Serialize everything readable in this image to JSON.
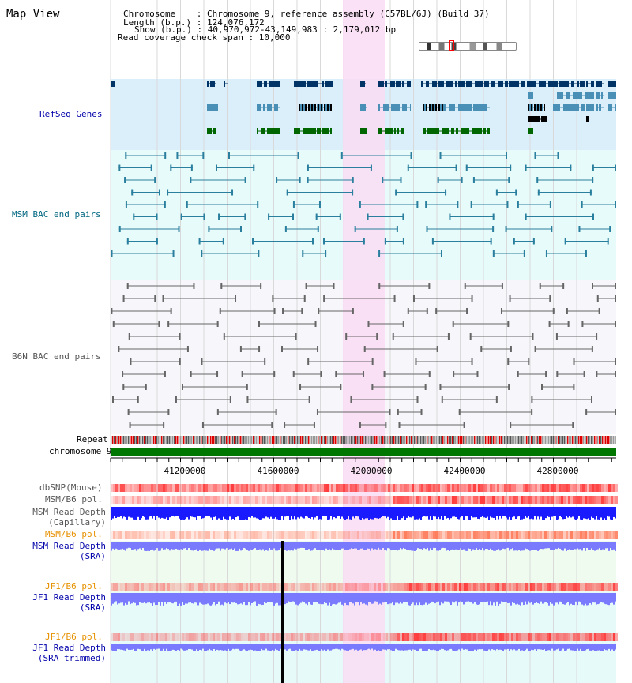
{
  "title": "Map View",
  "header": {
    "chromosome": "Chromosome    : Chromosome 9, reference assembly (C57BL/6J) (Build 37)",
    "length": "Length (b.p.) : 124,076,172",
    "show": "Show (b.p.) : 40,970,972-43,149,983 : 2,179,012 bp",
    "coverage": "Read coverage check span : 10,000"
  },
  "tracks": {
    "refseq": "RefSeq Genes",
    "msm_bac": "MSM BAC end pairs",
    "b6n_bac": "B6N BAC end pairs",
    "repeat": "Repeat",
    "chromosome": "chromosome 9",
    "dbsnp": "dbSNP(Mouse)",
    "msm_b6_pol": "MSM/B6 pol.",
    "msm_depth_cap_1": "MSM Read Depth",
    "msm_depth_cap_2": "(Capillary)",
    "msm_b6_pol2": "MSM/B6 pol.",
    "msm_depth_sra_1": "MSM Read Depth",
    "msm_depth_sra_2": "(SRA)",
    "jf1_b6_pol": "JF1/B6 pol.",
    "jf1_depth_sra_1": "JF1 Read Depth",
    "jf1_depth_sra_2": "(SRA)",
    "jf1_b6_pol2": "JF1/B6 pol.",
    "jf1_depth_trim_1": "JF1 Read Depth",
    "jf1_depth_trim_2": "(SRA trimmed)"
  },
  "axis": {
    "ticks": [
      "41200000",
      "41600000",
      "42000000",
      "42400000",
      "42800000"
    ]
  },
  "colors": {
    "refseq_bg": "#dbeffb",
    "bac_bg": "#e8fbfb",
    "highlight": "#f9dcf3",
    "gene_dark": "#003366",
    "gene_mid": "#4a8fb5",
    "gene_black": "#000000",
    "gene_green": "#006600",
    "msm_bac": "#2a7f9e",
    "b6n_bac": "#666666",
    "chrom_green": "#007700",
    "depth_blue": "#1a1aff",
    "depth_light": "#7a7aff",
    "label_navy": "#0000aa",
    "label_orange": "#e69100",
    "label_teal": "#006680",
    "label_gray": "#555555"
  }
}
